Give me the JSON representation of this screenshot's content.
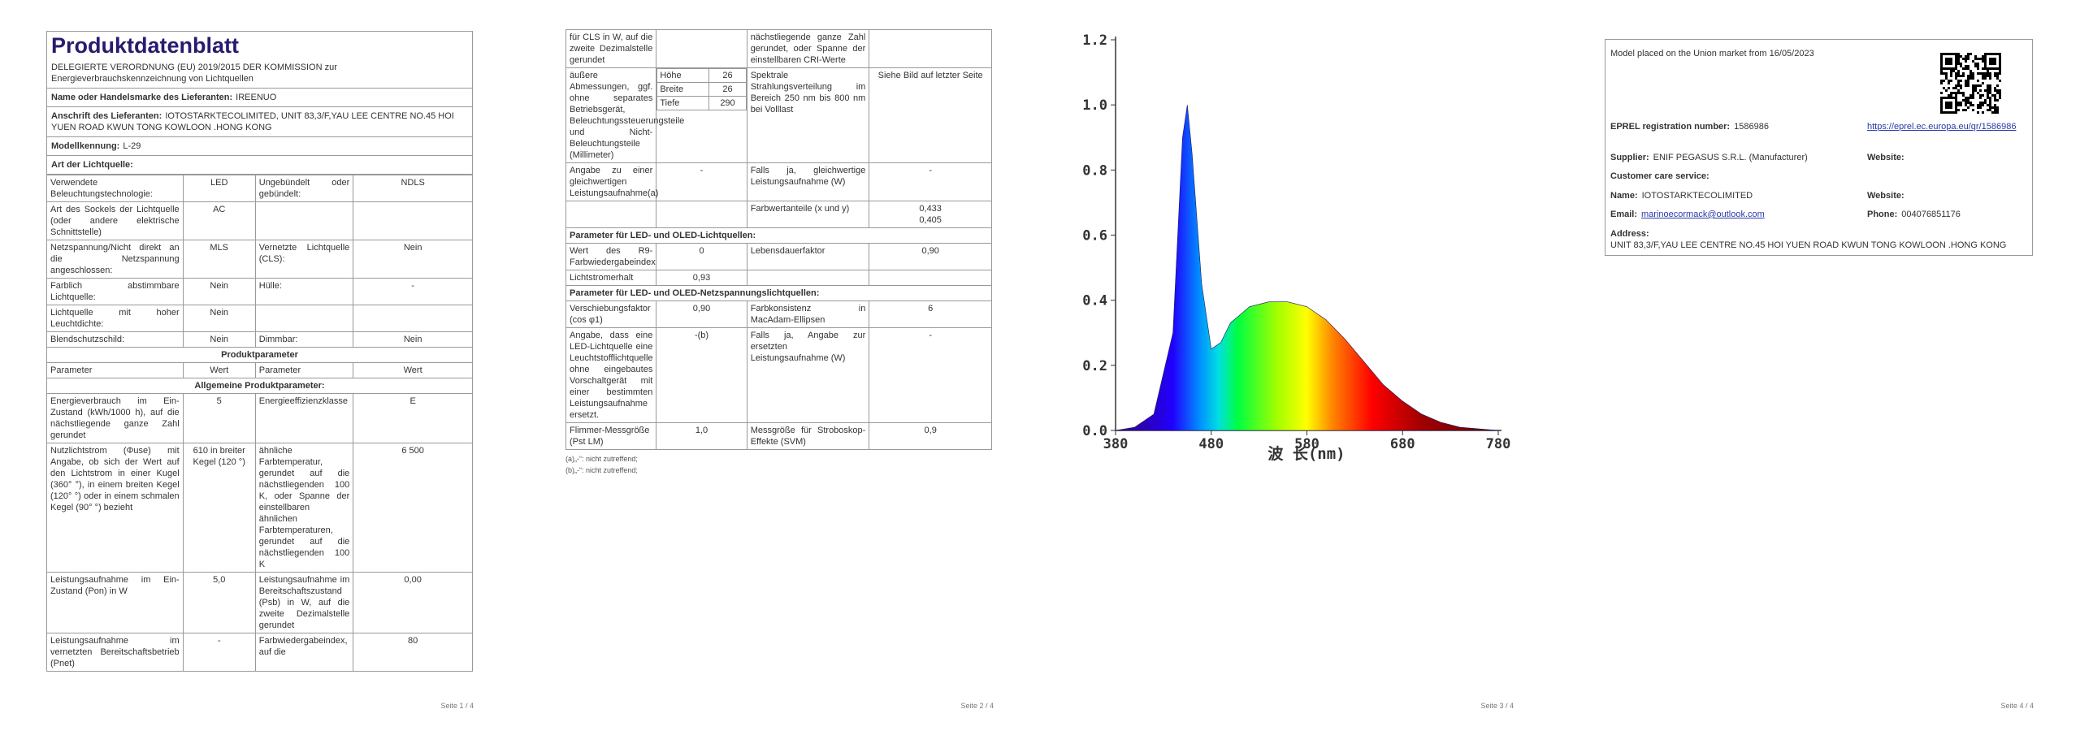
{
  "pages": [
    {
      "title": "Produktdatenblatt",
      "subtitle": "DELEGIERTE VERORDNUNG (EU) 2019/2015 DER KOMMISSION zur Energieverbrauchskennzeichnung von Lichtquellen",
      "info": [
        {
          "label": "Name oder Handelsmarke des Lieferanten:",
          "value": "IREENUO"
        },
        {
          "label": "Anschrift des Lieferanten:",
          "value": "IOTOSTARKTECOLIMITED, UNIT 83,3/F,YAU LEE CENTRE NO.45 HOI YUEN ROAD KWUN TONG KOWLOON .HONG KONG"
        },
        {
          "label": "Modellkennung:",
          "value": "L-29"
        }
      ],
      "section": "Art der Lichtquelle:",
      "rows": [
        [
          "Verwendete Beleuchtungstechnologie:",
          "LED",
          "Ungebündelt oder gebündelt:",
          "NDLS"
        ],
        [
          "Art des Sockels der Lichtquelle (oder andere elektrische Schnittstelle)",
          "AC",
          null,
          null
        ],
        [
          "Netzspannung/Nicht direkt an die Netzspannung angeschlossen:",
          "MLS",
          "Vernetzte Lichtquelle (CLS):",
          "Nein"
        ],
        [
          "Farblich abstimmbare Lichtquelle:",
          "Nein",
          "Hülle:",
          "-"
        ],
        [
          "Lichtquelle mit hoher Leuchtdichte:",
          "Nein",
          null,
          null
        ],
        [
          "Blendschutzschild:",
          "Nein",
          "Dimmbar:",
          "Nein"
        ],
        [
          "Produktparameter"
        ],
        [
          "Parameter",
          "Wert",
          "Parameter",
          "Wert"
        ],
        [
          "Allgemeine Produktparameter:"
        ],
        [
          "Energieverbrauch im Ein-Zustand (kWh/1000 h), auf die nächstliegende ganze Zahl gerundet",
          "5",
          "Energieeffizienzklasse",
          "E"
        ],
        [
          "Nutzlichtstrom (Φuse) mit Angabe, ob sich der Wert auf den Lichtstrom in einer Kugel (360° °), in einem breiten Kegel (120° °) oder in einem schmalen Kegel (90° °) bezieht",
          "610 in breiter Kegel (120 °)",
          "ähnliche Farbtemperatur, gerundet auf die nächstliegenden 100 K, oder Spanne der einstellbaren ähnlichen Farbtemperaturen, gerundet auf die nächstliegenden 100 K",
          "6 500"
        ],
        [
          "Leistungsaufnahme im Ein-Zustand (Pon) in W",
          "5,0",
          "Leistungsaufnahme im Bereitschaftszustand (Psb) in W, auf die zweite Dezimalstelle gerundet",
          "0,00"
        ],
        [
          "Leistungsaufnahme im vernetzten Bereitschaftsbetrieb (Pnet)",
          "-",
          "Farbwiedergabeindex, auf die",
          "80"
        ]
      ],
      "footer": "Seite 1 / 4"
    },
    {
      "rows": [
        [
          "für CLS in W, auf die zweite Dezimalstelle gerundet",
          null,
          "nächstliegende ganze Zahl gerundet, oder Spanne der einstellbaren CRI-Werte",
          null
        ],
        [
          "äußere Abmessungen, ggf. ohne separates Betriebsgerät, Beleuchtungssteuerungsteile und Nicht-Beleuchtungsteile (Millimeter)",
          [
            [
              "Höhe",
              "26"
            ],
            [
              "Breite",
              "26"
            ],
            [
              "Tiefe",
              "290"
            ]
          ],
          "Spektrale Strahlungsverteilung im Bereich 250 nm bis 800 nm bei Volllast",
          "Siehe Bild auf letzter Seite"
        ],
        [
          "Angabe zu einer gleichwertigen Leistungsaufnahme(a)",
          "-",
          "Falls ja, gleichwertige Leistungsaufnahme (W)",
          "-"
        ],
        [
          null,
          null,
          "Farbwertanteile (x und y)",
          "0,433\n0,405"
        ],
        [
          "Parameter für LED- und OLED-Lichtquellen:"
        ],
        [
          "Wert des R9-Farbwiedergabeindex",
          "0",
          "Lebensdauerfaktor",
          "0,90"
        ],
        [
          "Lichtstromerhalt",
          "0,93",
          null,
          null
        ],
        [
          "Parameter für LED- und OLED-Netzspannungslichtquellen:"
        ],
        [
          "Verschiebungsfaktor (cos φ1)",
          "0,90",
          "Farbkonsistenz in MacAdam-Ellipsen",
          "6"
        ],
        [
          "Angabe, dass eine LED-Lichtquelle eine Leuchtstofflichtquelle ohne eingebautes Vorschaltgerät mit einer bestimmten Leistungsaufnahme ersetzt.",
          "-(b)",
          "Falls ja, Angabe zur ersetzten Leistungsaufnahme (W)",
          "-"
        ],
        [
          "Flimmer-Messgröße (Pst LM)",
          "1,0",
          "Messgröße für Stroboskop-Effekte (SVM)",
          "0,9"
        ]
      ],
      "notes": [
        "(a)„-“: nicht zutreffend;",
        "(b)„-“: nicht zutreffend;"
      ],
      "footer": "Seite 2 / 4"
    },
    {
      "footer": "Seite 3 / 4"
    },
    {
      "box": {
        "placed": "Model placed on the Union market from 16/05/2023",
        "eprel": {
          "label": "EPREL registration number:",
          "value": "1586986",
          "link": "https://eprel.ec.europa.eu/qr/1586986"
        },
        "supplier": {
          "label": "Supplier:",
          "value": "ENIF PEGASUS S.R.L. (Manufacturer)"
        },
        "supplier_website": "Website:",
        "customer_care": "Customer care service:",
        "name": {
          "label": "Name:",
          "value": "IOTOSTARKTECOLIMITED"
        },
        "website": "Website:",
        "email": {
          "label": "Email:",
          "value": "marinoecormack@outlook.com"
        },
        "phone": {
          "label": "Phone:",
          "value": "004076851176"
        },
        "address": {
          "label": "Address:",
          "value": "UNIT 83,3/F,YAU LEE CENTRE NO.45 HOI YUEN ROAD KWUN TONG KOWLOON .HONG KONG"
        }
      },
      "footer": "Seite 4 / 4"
    }
  ],
  "chart_data": {
    "type": "area",
    "xlabel": "波 长(nm)",
    "x": [
      380,
      400,
      420,
      440,
      450,
      455,
      460,
      470,
      480,
      490,
      500,
      520,
      540,
      560,
      580,
      600,
      620,
      640,
      660,
      680,
      700,
      720,
      740,
      760,
      780
    ],
    "values": [
      0,
      0.01,
      0.05,
      0.3,
      0.9,
      1.0,
      0.85,
      0.45,
      0.25,
      0.27,
      0.33,
      0.38,
      0.395,
      0.395,
      0.38,
      0.34,
      0.28,
      0.21,
      0.14,
      0.09,
      0.05,
      0.025,
      0.01,
      0.005,
      0
    ],
    "xlim": [
      380,
      780
    ],
    "ylim": [
      0,
      1.2
    ],
    "xticks": [
      380,
      480,
      580,
      680,
      780
    ],
    "yticks": [
      {
        "value": 0,
        "label": "0.0"
      },
      0.2,
      0.4,
      0.6,
      0.8,
      {
        "value": 1,
        "label": "1.0"
      },
      1.2
    ]
  }
}
